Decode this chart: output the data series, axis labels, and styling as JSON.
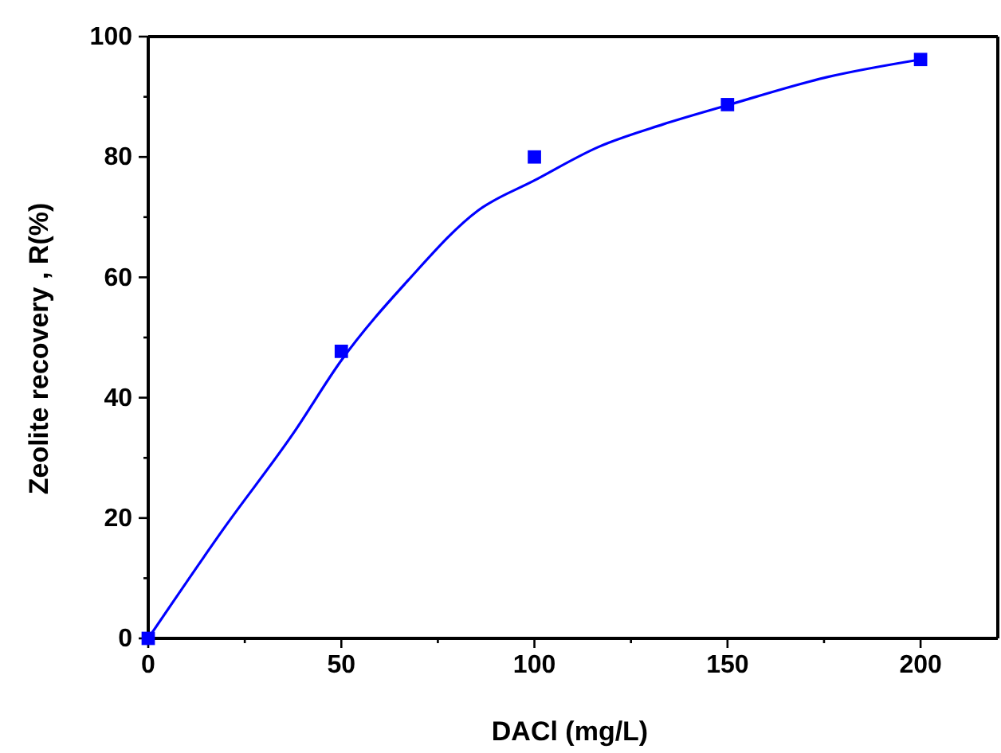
{
  "chart_data": {
    "type": "scatter",
    "xlabel": "DACl (mg/L)",
    "ylabel": "Zeolite recovery , R(%)",
    "xlim": [
      0,
      220
    ],
    "ylim": [
      0,
      100
    ],
    "xticks": [
      0,
      {
        "value": 25,
        "label": null
      },
      50,
      {
        "value": 75,
        "label": null
      },
      100,
      {
        "value": 125,
        "label": null
      },
      150,
      {
        "value": 175,
        "label": null
      },
      200
    ],
    "yticks": [
      0,
      {
        "value": 10,
        "label": null
      },
      20,
      {
        "value": 30,
        "label": null
      },
      40,
      {
        "value": 50,
        "label": null
      },
      60,
      {
        "value": 70,
        "label": null
      },
      80,
      {
        "value": 90,
        "label": null
      },
      100
    ],
    "grid": false,
    "series": [
      {
        "color": "#0000ff",
        "marker": "square",
        "x": [
          0,
          50,
          100,
          150,
          200
        ],
        "values": [
          0,
          47.7,
          80,
          88.7,
          96.2
        ]
      },
      {
        "type": "line",
        "color": "#0000ff",
        "marker": "none",
        "line_style": "solid",
        "x": [
          0,
          19.5,
          37.6,
          50,
          67.3,
          85.4,
          100,
          116.7,
          133.2,
          150,
          176,
          200
        ],
        "values": [
          0,
          18.2,
          34.1,
          46.2,
          59.5,
          71.1,
          76.1,
          81.7,
          85.4,
          88.6,
          93.3,
          96.2
        ]
      }
    ]
  }
}
